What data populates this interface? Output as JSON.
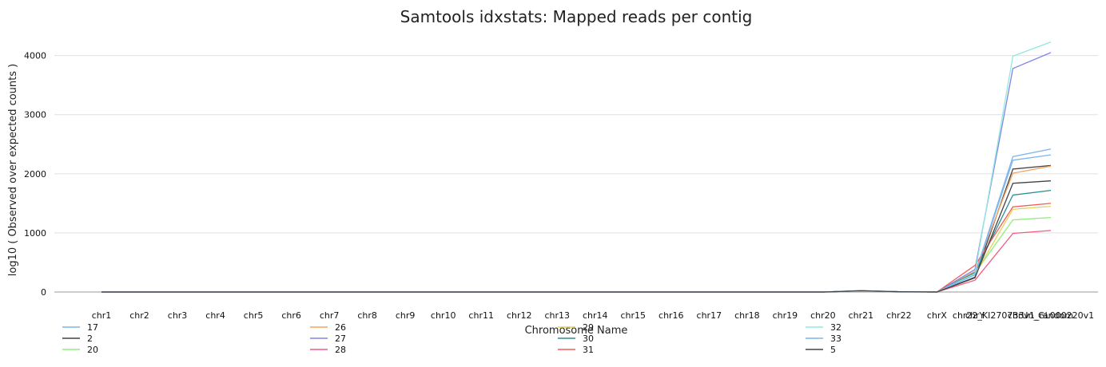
{
  "chart_data": {
    "type": "line",
    "title": "Samtools idxstats: Mapped reads per contig",
    "xlabel": "Chromosome Name",
    "ylabel": "log10 ( Observed over expected counts )",
    "ylim": [
      0,
      4400
    ],
    "yticks": [
      0,
      1000,
      2000,
      3000,
      4000
    ],
    "grid": true,
    "legend_position": "bottom",
    "categories": [
      "chr1",
      "chr2",
      "chr3",
      "chr4",
      "chr5",
      "chr6",
      "chr7",
      "chr8",
      "chr9",
      "chr10",
      "chr11",
      "chr12",
      "chr13",
      "chr14",
      "chr15",
      "chr16",
      "chr17",
      "chr18",
      "chr19",
      "chr20",
      "chr21",
      "chr22",
      "chrX",
      "chrY",
      "chr22_KI270733v1_random",
      "chrUn_GL000220v1"
    ],
    "series": [
      {
        "name": "17",
        "color": "#7cb5ec",
        "values": [
          0,
          0,
          0,
          0,
          0,
          0,
          0,
          0,
          0,
          0,
          0,
          0,
          0,
          0,
          0,
          0,
          0,
          0,
          0,
          0,
          20,
          5,
          0,
          300,
          2290,
          2420
        ]
      },
      {
        "name": "2",
        "color": "#434348",
        "values": [
          0,
          0,
          0,
          0,
          0,
          0,
          0,
          0,
          0,
          0,
          0,
          0,
          0,
          0,
          0,
          0,
          0,
          0,
          0,
          0,
          20,
          5,
          0,
          250,
          2080,
          2140
        ]
      },
      {
        "name": "20",
        "color": "#90ed7d",
        "values": [
          0,
          0,
          0,
          0,
          0,
          0,
          0,
          0,
          0,
          0,
          0,
          0,
          0,
          0,
          0,
          0,
          0,
          0,
          0,
          0,
          20,
          5,
          0,
          320,
          1220,
          1260
        ]
      },
      {
        "name": "26",
        "color": "#f7a35c",
        "values": [
          0,
          0,
          0,
          0,
          0,
          0,
          0,
          0,
          0,
          0,
          0,
          0,
          0,
          0,
          0,
          0,
          0,
          0,
          0,
          0,
          20,
          5,
          0,
          350,
          2010,
          2130
        ]
      },
      {
        "name": "27",
        "color": "#8085e9",
        "values": [
          0,
          0,
          0,
          0,
          0,
          0,
          0,
          0,
          0,
          0,
          0,
          0,
          0,
          0,
          0,
          0,
          0,
          0,
          0,
          0,
          20,
          5,
          0,
          380,
          3780,
          4050
        ]
      },
      {
        "name": "28",
        "color": "#f15c80",
        "values": [
          0,
          0,
          0,
          0,
          0,
          0,
          0,
          0,
          0,
          0,
          0,
          0,
          0,
          0,
          0,
          0,
          0,
          0,
          0,
          0,
          20,
          5,
          0,
          200,
          990,
          1040
        ]
      },
      {
        "name": "29",
        "color": "#e4d354",
        "values": [
          0,
          0,
          0,
          0,
          0,
          0,
          0,
          0,
          0,
          0,
          0,
          0,
          0,
          0,
          0,
          0,
          0,
          0,
          0,
          0,
          20,
          5,
          0,
          300,
          1400,
          1450
        ]
      },
      {
        "name": "30",
        "color": "#2b908f",
        "values": [
          0,
          0,
          0,
          0,
          0,
          0,
          0,
          0,
          0,
          0,
          0,
          0,
          0,
          0,
          0,
          0,
          0,
          0,
          0,
          0,
          25,
          5,
          0,
          330,
          1640,
          1720
        ]
      },
      {
        "name": "31",
        "color": "#f45b5b",
        "values": [
          0,
          0,
          0,
          0,
          0,
          0,
          0,
          0,
          0,
          0,
          0,
          0,
          0,
          0,
          0,
          0,
          0,
          0,
          0,
          0,
          20,
          5,
          0,
          450,
          1440,
          1500
        ]
      },
      {
        "name": "32",
        "color": "#91e8e1",
        "values": [
          0,
          0,
          0,
          0,
          0,
          0,
          0,
          0,
          0,
          0,
          0,
          0,
          0,
          0,
          0,
          0,
          0,
          0,
          0,
          0,
          20,
          5,
          0,
          310,
          3990,
          4230
        ]
      },
      {
        "name": "33",
        "color": "#7cb5ec",
        "values": [
          0,
          0,
          0,
          0,
          0,
          0,
          0,
          0,
          0,
          0,
          0,
          0,
          0,
          0,
          0,
          0,
          0,
          0,
          0,
          0,
          20,
          5,
          0,
          290,
          2230,
          2320
        ]
      },
      {
        "name": "5",
        "color": "#434348",
        "values": [
          0,
          0,
          0,
          0,
          0,
          0,
          0,
          0,
          0,
          0,
          0,
          0,
          0,
          0,
          0,
          0,
          0,
          0,
          0,
          0,
          20,
          5,
          0,
          240,
          1840,
          1880
        ]
      }
    ]
  }
}
